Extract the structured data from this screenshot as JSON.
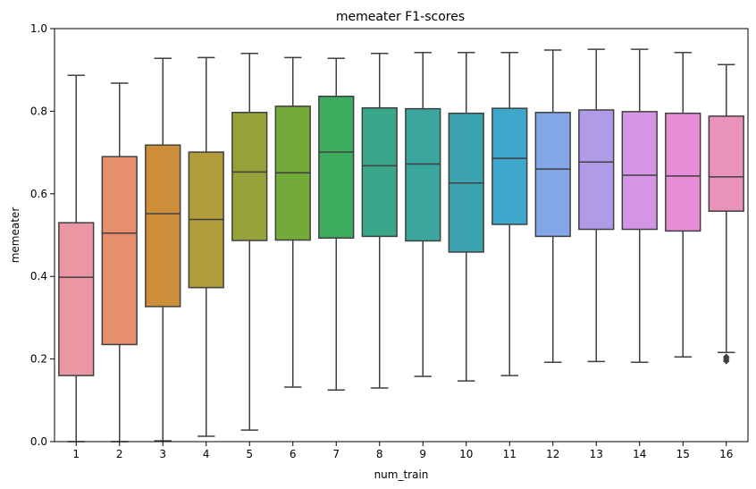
{
  "chart_data": {
    "type": "box",
    "title": "memeater F1-scores",
    "xlabel": "num_train",
    "ylabel": "memeater",
    "ylim": [
      0,
      1
    ],
    "yticks": [
      "0.0",
      "0.2",
      "0.4",
      "0.6",
      "0.8",
      "1.0"
    ],
    "grid": false,
    "categories": [
      "1",
      "2",
      "3",
      "4",
      "5",
      "6",
      "7",
      "8",
      "9",
      "10",
      "11",
      "12",
      "13",
      "14",
      "15",
      "16"
    ],
    "colors": [
      "#ea96a3",
      "#e68e6d",
      "#cf8f3a",
      "#b19b3a",
      "#98a23a",
      "#73aa3a",
      "#3cac5d",
      "#3aa78a",
      "#3aa69e",
      "#3ba3b0",
      "#3ea8cc",
      "#82a6e8",
      "#b09be8",
      "#d595e7",
      "#e98cd8",
      "#e993bc"
    ],
    "boxes": [
      {
        "whislo": 0.0,
        "q1": 0.16,
        "med": 0.398,
        "q3": 0.53,
        "whishi": 0.887,
        "fliers": []
      },
      {
        "whislo": 0.0,
        "q1": 0.235,
        "med": 0.505,
        "q3": 0.69,
        "whishi": 0.868,
        "fliers": []
      },
      {
        "whislo": 0.002,
        "q1": 0.327,
        "med": 0.552,
        "q3": 0.718,
        "whishi": 0.928,
        "fliers": []
      },
      {
        "whislo": 0.013,
        "q1": 0.373,
        "med": 0.538,
        "q3": 0.701,
        "whishi": 0.93,
        "fliers": []
      },
      {
        "whislo": 0.028,
        "q1": 0.487,
        "med": 0.653,
        "q3": 0.797,
        "whishi": 0.94,
        "fliers": []
      },
      {
        "whislo": 0.132,
        "q1": 0.488,
        "med": 0.651,
        "q3": 0.812,
        "whishi": 0.93,
        "fliers": []
      },
      {
        "whislo": 0.125,
        "q1": 0.493,
        "med": 0.701,
        "q3": 0.836,
        "whishi": 0.928,
        "fliers": []
      },
      {
        "whislo": 0.13,
        "q1": 0.497,
        "med": 0.668,
        "q3": 0.808,
        "whishi": 0.94,
        "fliers": []
      },
      {
        "whislo": 0.158,
        "q1": 0.486,
        "med": 0.672,
        "q3": 0.806,
        "whishi": 0.942,
        "fliers": []
      },
      {
        "whislo": 0.147,
        "q1": 0.459,
        "med": 0.626,
        "q3": 0.795,
        "whishi": 0.942,
        "fliers": []
      },
      {
        "whislo": 0.16,
        "q1": 0.526,
        "med": 0.686,
        "q3": 0.807,
        "whishi": 0.942,
        "fliers": []
      },
      {
        "whislo": 0.192,
        "q1": 0.497,
        "med": 0.66,
        "q3": 0.797,
        "whishi": 0.948,
        "fliers": []
      },
      {
        "whislo": 0.194,
        "q1": 0.514,
        "med": 0.677,
        "q3": 0.803,
        "whishi": 0.95,
        "fliers": []
      },
      {
        "whislo": 0.192,
        "q1": 0.514,
        "med": 0.645,
        "q3": 0.799,
        "whishi": 0.95,
        "fliers": []
      },
      {
        "whislo": 0.205,
        "q1": 0.51,
        "med": 0.643,
        "q3": 0.795,
        "whishi": 0.942,
        "fliers": []
      },
      {
        "whislo": 0.216,
        "q1": 0.558,
        "med": 0.641,
        "q3": 0.788,
        "whishi": 0.913,
        "fliers": [
          0.195,
          0.2,
          0.205
        ]
      }
    ]
  }
}
